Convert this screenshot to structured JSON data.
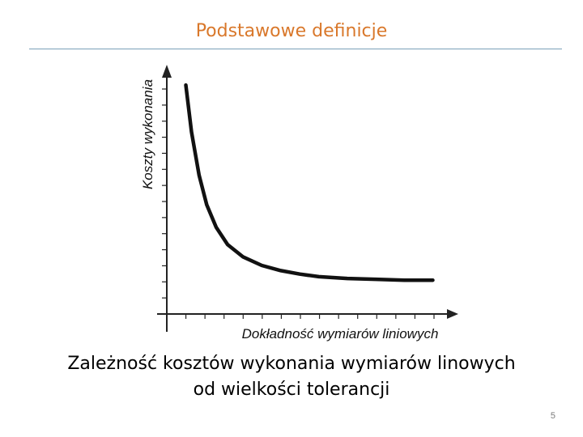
{
  "slide": {
    "title": "Podstawowe definicje",
    "caption_line1": "Zależność kosztów wykonania wymiarów linowych",
    "caption_line2": "od wielkości tolerancji",
    "page_number": "5"
  },
  "colors": {
    "title": "#d9782b",
    "rule": "#7aa0b8",
    "curve": "#111111",
    "axis": "#222222"
  },
  "chart_data": {
    "type": "line",
    "title": "",
    "xlabel": "Dokładność wymiarów liniowych",
    "ylabel": "Koszty wykonania",
    "xlim": [
      0,
      15
    ],
    "ylim": [
      0,
      14
    ],
    "grid": false,
    "x_ticks": 14,
    "y_ticks": 14,
    "series": [
      {
        "points": [
          [
            1,
            13.2
          ],
          [
            1.3,
            10.5
          ],
          [
            1.7,
            8.0
          ],
          [
            2.1,
            6.3
          ],
          [
            2.6,
            5.0
          ],
          [
            3.2,
            4.0
          ],
          [
            4.0,
            3.3
          ],
          [
            5.0,
            2.8
          ],
          [
            6.0,
            2.5
          ],
          [
            7.0,
            2.3
          ],
          [
            8.0,
            2.15
          ],
          [
            9.5,
            2.05
          ],
          [
            11.0,
            2.0
          ],
          [
            12.5,
            1.95
          ],
          [
            14.0,
            1.95
          ]
        ]
      }
    ]
  }
}
